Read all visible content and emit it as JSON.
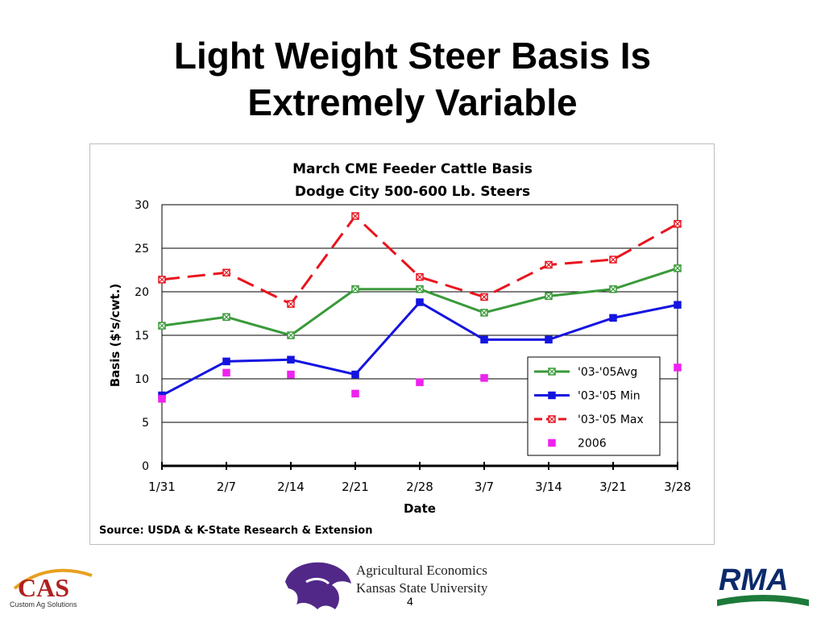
{
  "slide": {
    "title_line1": "Light Weight Steer Basis Is",
    "title_line2": "Extremely Variable",
    "page_number": "4"
  },
  "logos": {
    "cas_text": "CAS",
    "cas_sub": "Custom Ag Solutions",
    "ksu_line1": "Agricultural Economics",
    "ksu_line2": "Kansas State University",
    "rma_text": "RMA"
  },
  "chart_data": {
    "type": "line",
    "title": "March CME Feeder Cattle Basis",
    "subtitle": "Dodge City 500-600 Lb. Steers",
    "xlabel": "Date",
    "ylabel": "Basis ($'s/cwt.)",
    "categories": [
      "1/31",
      "2/7",
      "2/14",
      "2/21",
      "2/28",
      "3/7",
      "3/14",
      "3/21",
      "3/28"
    ],
    "ylim": [
      0,
      30
    ],
    "yticks": [
      0,
      5,
      10,
      15,
      20,
      25,
      30
    ],
    "grid": true,
    "legend_position": "lower-right",
    "source": "Source:  USDA & K-State Research & Extension",
    "series": [
      {
        "name": "'03-'05Avg",
        "color": "#3a9a3a",
        "style": "solid",
        "marker": "x-square",
        "values": [
          16.1,
          17.1,
          15.0,
          20.3,
          20.3,
          17.6,
          19.5,
          20.3,
          22.7
        ]
      },
      {
        "name": "'03-'05 Min",
        "color": "#1414e0",
        "style": "solid",
        "marker": "square",
        "values": [
          8.1,
          12.0,
          12.2,
          10.5,
          18.8,
          14.5,
          14.5,
          17.0,
          18.5
        ]
      },
      {
        "name": "'03-'05 Max",
        "color": "#e8141e",
        "style": "dashed",
        "marker": "x-square",
        "values": [
          21.4,
          22.2,
          18.6,
          28.7,
          21.7,
          19.4,
          23.1,
          23.7,
          27.8
        ]
      },
      {
        "name": "2006",
        "color": "#ee22ee",
        "style": "none",
        "marker": "square",
        "values": [
          7.7,
          10.7,
          10.5,
          8.3,
          9.6,
          10.1,
          null,
          null,
          11.3
        ]
      }
    ]
  }
}
